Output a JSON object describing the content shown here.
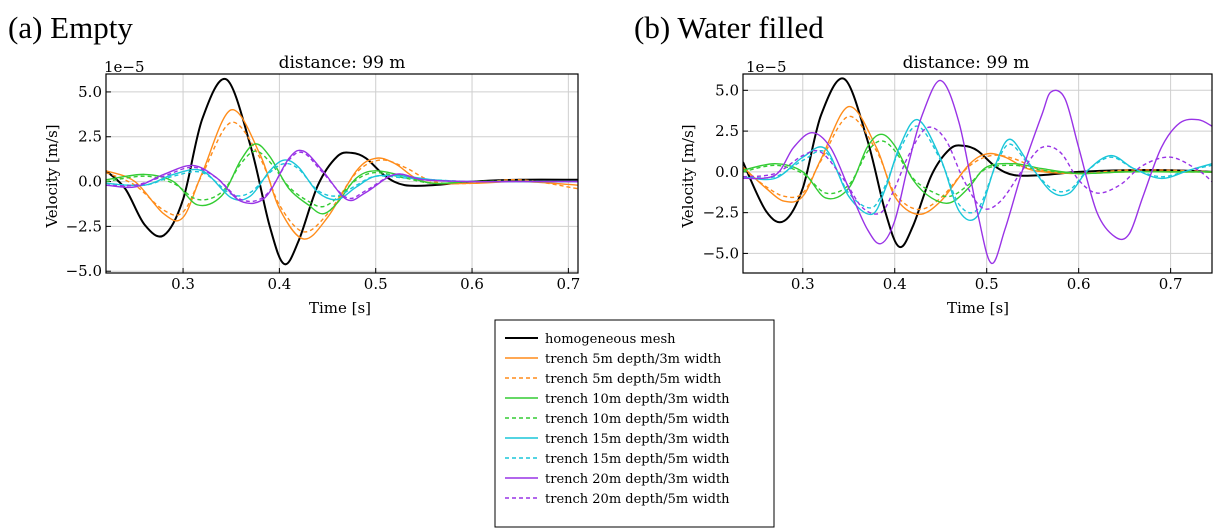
{
  "chart_data": [
    {
      "type": "line",
      "panel_label": "(a) Empty",
      "title": "distance: 99 m",
      "xlabel": "Time [s]",
      "ylabel": "Velocity [m/s]",
      "offset_text": "1e−5",
      "xlim": [
        0.22,
        0.71
      ],
      "ylim": [
        -5.1,
        6.0
      ],
      "xticks": [
        0.3,
        0.4,
        0.5,
        0.6,
        0.7
      ],
      "xtick_labels": [
        "0.3",
        "0.4",
        "0.5",
        "0.6",
        "0.7"
      ],
      "yticks": [
        -5.0,
        -2.5,
        0.0,
        2.5,
        5.0
      ],
      "ytick_labels": [
        "−5.0",
        "−2.5",
        "0.0",
        "2.5",
        "5.0"
      ],
      "grid": true,
      "series": [
        {
          "name": "homogeneous mesh",
          "color": "#000000",
          "dash": "solid",
          "x": [
            0.22,
            0.24,
            0.26,
            0.28,
            0.3,
            0.32,
            0.345,
            0.37,
            0.39,
            0.405,
            0.42,
            0.44,
            0.46,
            0.475,
            0.49,
            0.51,
            0.53,
            0.56,
            0.6,
            0.65,
            0.71
          ],
          "y": [
            0.6,
            -0.4,
            -2.4,
            -3.0,
            -1.0,
            3.5,
            5.7,
            2.0,
            -2.5,
            -4.6,
            -3.3,
            -0.2,
            1.4,
            1.6,
            1.3,
            0.3,
            -0.2,
            -0.2,
            0.0,
            0.1,
            0.1
          ]
        },
        {
          "name": "trench 5m depth/3m width",
          "color": "#ff8c1a",
          "dash": "solid",
          "x": [
            0.22,
            0.25,
            0.28,
            0.3,
            0.32,
            0.35,
            0.38,
            0.4,
            0.425,
            0.45,
            0.48,
            0.5,
            0.52,
            0.55,
            0.6,
            0.65,
            0.71
          ],
          "y": [
            0.6,
            0.0,
            -1.8,
            -2.0,
            0.5,
            4.0,
            1.5,
            -1.5,
            -3.2,
            -2.0,
            0.6,
            1.3,
            1.0,
            0.0,
            -0.1,
            0.0,
            -0.2
          ]
        },
        {
          "name": "trench 5m depth/5m width",
          "color": "#ff8c1a",
          "dash": "dashed",
          "x": [
            0.22,
            0.25,
            0.28,
            0.3,
            0.32,
            0.35,
            0.38,
            0.4,
            0.425,
            0.45,
            0.48,
            0.505,
            0.53,
            0.56,
            0.6,
            0.65,
            0.71
          ],
          "y": [
            0.5,
            -0.2,
            -1.6,
            -1.7,
            0.4,
            3.3,
            1.3,
            -1.3,
            -2.8,
            -1.8,
            0.5,
            1.2,
            0.8,
            0.0,
            -0.1,
            0.1,
            -0.4
          ]
        },
        {
          "name": "trench 10m depth/3m width",
          "color": "#33cc33",
          "dash": "solid",
          "x": [
            0.22,
            0.26,
            0.29,
            0.315,
            0.34,
            0.36,
            0.375,
            0.39,
            0.41,
            0.43,
            0.445,
            0.46,
            0.48,
            0.5,
            0.53,
            0.56,
            0.6,
            0.65,
            0.71
          ],
          "y": [
            0.1,
            0.4,
            0.0,
            -1.3,
            -0.8,
            1.2,
            2.1,
            1.4,
            -0.4,
            -1.3,
            -1.8,
            -1.2,
            0.2,
            0.6,
            0.3,
            -0.1,
            0.0,
            0.0,
            0.0
          ]
        },
        {
          "name": "trench 10m depth/5m width",
          "color": "#33cc33",
          "dash": "dashed",
          "x": [
            0.22,
            0.26,
            0.29,
            0.315,
            0.34,
            0.36,
            0.375,
            0.39,
            0.41,
            0.43,
            0.445,
            0.46,
            0.48,
            0.5,
            0.53,
            0.56,
            0.6,
            0.65,
            0.71
          ],
          "y": [
            0.0,
            0.3,
            -0.1,
            -1.0,
            -0.6,
            1.0,
            1.7,
            1.1,
            -0.3,
            -1.1,
            -1.4,
            -0.9,
            0.1,
            0.5,
            0.2,
            -0.1,
            0.0,
            0.0,
            0.0
          ]
        },
        {
          "name": "trench 15m depth/3m width",
          "color": "#1ac6d9",
          "dash": "solid",
          "x": [
            0.22,
            0.26,
            0.29,
            0.32,
            0.35,
            0.37,
            0.39,
            0.405,
            0.42,
            0.44,
            0.46,
            0.48,
            0.5,
            0.53,
            0.56,
            0.6,
            0.65,
            0.71
          ],
          "y": [
            -0.1,
            -0.2,
            0.4,
            0.6,
            -0.9,
            -0.8,
            0.6,
            1.2,
            0.8,
            -0.6,
            -1.0,
            -0.3,
            0.3,
            0.3,
            0.1,
            0.0,
            0.0,
            0.0
          ]
        },
        {
          "name": "trench 15m depth/5m width",
          "color": "#1ac6d9",
          "dash": "dashed",
          "x": [
            0.22,
            0.26,
            0.29,
            0.32,
            0.35,
            0.37,
            0.39,
            0.405,
            0.42,
            0.44,
            0.46,
            0.48,
            0.5,
            0.53,
            0.56,
            0.6,
            0.65,
            0.71
          ],
          "y": [
            -0.1,
            -0.2,
            0.3,
            0.5,
            -0.7,
            -0.6,
            0.5,
            1.0,
            0.7,
            -0.5,
            -0.8,
            -0.2,
            0.3,
            0.2,
            0.1,
            0.0,
            0.0,
            0.0
          ]
        },
        {
          "name": "trench 20m depth/3m width",
          "color": "#9933e6",
          "dash": "solid",
          "x": [
            0.22,
            0.25,
            0.28,
            0.31,
            0.335,
            0.36,
            0.385,
            0.41,
            0.425,
            0.445,
            0.47,
            0.49,
            0.52,
            0.55,
            0.6,
            0.65,
            0.71
          ],
          "y": [
            -0.2,
            -0.3,
            0.4,
            0.9,
            0.2,
            -1.1,
            -0.9,
            1.3,
            1.7,
            0.6,
            -1.0,
            -0.6,
            0.4,
            0.1,
            0.0,
            0.0,
            0.0
          ]
        },
        {
          "name": "trench 20m depth/5m width",
          "color": "#9933e6",
          "dash": "dashed",
          "x": [
            0.22,
            0.25,
            0.28,
            0.31,
            0.335,
            0.36,
            0.385,
            0.41,
            0.425,
            0.445,
            0.47,
            0.49,
            0.52,
            0.55,
            0.6,
            0.65,
            0.71
          ],
          "y": [
            -0.2,
            -0.2,
            0.3,
            0.8,
            0.2,
            -1.0,
            -0.8,
            1.2,
            1.6,
            0.5,
            -0.9,
            -0.5,
            0.4,
            0.1,
            0.0,
            0.0,
            0.0
          ]
        }
      ]
    },
    {
      "type": "line",
      "panel_label": "(b) Water filled",
      "title": "distance: 99 m",
      "xlabel": "Time [s]",
      "ylabel": "Velocity [m/s]",
      "offset_text": "1e−5",
      "xlim": [
        0.235,
        0.745
      ],
      "ylim": [
        -6.2,
        6.0
      ],
      "xticks": [
        0.3,
        0.4,
        0.5,
        0.6,
        0.7
      ],
      "xtick_labels": [
        "0.3",
        "0.4",
        "0.5",
        "0.6",
        "0.7"
      ],
      "yticks": [
        -5.0,
        -2.5,
        0.0,
        2.5,
        5.0
      ],
      "ytick_labels": [
        "−5.0",
        "−2.5",
        "0.0",
        "2.5",
        "5.0"
      ],
      "grid": true,
      "series": [
        {
          "name": "homogeneous mesh",
          "color": "#000000",
          "dash": "solid",
          "x": [
            0.235,
            0.26,
            0.28,
            0.3,
            0.32,
            0.345,
            0.37,
            0.39,
            0.405,
            0.42,
            0.44,
            0.46,
            0.475,
            0.49,
            0.51,
            0.53,
            0.56,
            0.6,
            0.65,
            0.7,
            0.745
          ],
          "y": [
            0.6,
            -2.4,
            -3.0,
            -1.0,
            3.5,
            5.7,
            2.0,
            -2.5,
            -4.6,
            -3.3,
            -0.2,
            1.4,
            1.6,
            1.3,
            0.3,
            -0.2,
            -0.2,
            0.0,
            0.1,
            0.1,
            0.0
          ]
        },
        {
          "name": "trench 5m depth/3m width",
          "color": "#ff8c1a",
          "dash": "solid",
          "x": [
            0.235,
            0.26,
            0.28,
            0.3,
            0.32,
            0.35,
            0.38,
            0.4,
            0.425,
            0.45,
            0.48,
            0.5,
            0.52,
            0.55,
            0.6,
            0.65,
            0.7,
            0.745
          ],
          "y": [
            0.3,
            -1.0,
            -1.8,
            -1.5,
            0.8,
            4.0,
            1.5,
            -1.5,
            -2.6,
            -1.8,
            0.4,
            1.1,
            0.9,
            0.1,
            -0.1,
            0.0,
            0.0,
            0.0
          ]
        },
        {
          "name": "trench 5m depth/5m width",
          "color": "#ff8c1a",
          "dash": "dashed",
          "x": [
            0.235,
            0.26,
            0.28,
            0.3,
            0.32,
            0.35,
            0.38,
            0.4,
            0.425,
            0.45,
            0.48,
            0.505,
            0.53,
            0.56,
            0.6,
            0.65,
            0.7,
            0.745
          ],
          "y": [
            0.2,
            -0.9,
            -1.5,
            -1.3,
            0.7,
            3.4,
            1.3,
            -1.3,
            -2.3,
            -1.6,
            0.3,
            1.0,
            0.8,
            0.1,
            -0.1,
            0.1,
            0.1,
            0.0
          ]
        },
        {
          "name": "trench 10m depth/3m width",
          "color": "#33cc33",
          "dash": "solid",
          "x": [
            0.235,
            0.27,
            0.3,
            0.325,
            0.35,
            0.37,
            0.385,
            0.4,
            0.42,
            0.44,
            0.46,
            0.48,
            0.5,
            0.53,
            0.56,
            0.6,
            0.65,
            0.7,
            0.745
          ],
          "y": [
            0.1,
            0.5,
            0.0,
            -1.6,
            -1.0,
            1.5,
            2.3,
            1.6,
            -0.5,
            -1.6,
            -1.9,
            -1.0,
            0.3,
            0.5,
            0.2,
            -0.1,
            0.0,
            0.0,
            0.0
          ]
        },
        {
          "name": "trench 10m depth/5m width",
          "color": "#33cc33",
          "dash": "dashed",
          "x": [
            0.235,
            0.27,
            0.3,
            0.325,
            0.35,
            0.37,
            0.385,
            0.4,
            0.42,
            0.44,
            0.46,
            0.48,
            0.5,
            0.53,
            0.56,
            0.6,
            0.65,
            0.7,
            0.745
          ],
          "y": [
            0.0,
            0.4,
            -0.1,
            -1.3,
            -0.8,
            1.2,
            1.9,
            1.3,
            -0.4,
            -1.2,
            -1.5,
            -0.8,
            0.2,
            0.4,
            0.1,
            -0.1,
            0.0,
            0.0,
            0.0
          ]
        },
        {
          "name": "trench 15m depth/3m width",
          "color": "#1ac6d9",
          "dash": "solid",
          "x": [
            0.235,
            0.27,
            0.3,
            0.325,
            0.35,
            0.375,
            0.39,
            0.405,
            0.425,
            0.45,
            0.47,
            0.49,
            0.51,
            0.525,
            0.545,
            0.57,
            0.59,
            0.61,
            0.635,
            0.66,
            0.69,
            0.72,
            0.745
          ],
          "y": [
            -0.3,
            -0.4,
            0.9,
            1.4,
            -1.5,
            -2.6,
            -1.0,
            1.5,
            3.2,
            0.8,
            -2.4,
            -2.7,
            0.5,
            2.0,
            0.6,
            -1.2,
            -1.3,
            0.1,
            1.0,
            0.2,
            -0.4,
            0.1,
            0.5
          ]
        },
        {
          "name": "trench 15m depth/5m width",
          "color": "#1ac6d9",
          "dash": "dashed",
          "x": [
            0.235,
            0.27,
            0.3,
            0.325,
            0.35,
            0.375,
            0.39,
            0.405,
            0.425,
            0.45,
            0.47,
            0.49,
            0.51,
            0.525,
            0.545,
            0.57,
            0.59,
            0.61,
            0.635,
            0.66,
            0.69,
            0.72,
            0.745
          ],
          "y": [
            -0.3,
            -0.3,
            0.7,
            1.2,
            -1.3,
            -2.2,
            -0.8,
            1.3,
            2.8,
            0.7,
            -2.0,
            -2.3,
            0.4,
            1.7,
            0.5,
            -1.0,
            -1.1,
            0.1,
            0.9,
            0.2,
            -0.3,
            0.1,
            0.4
          ]
        },
        {
          "name": "trench 20m depth/3m width",
          "color": "#9933e6",
          "dash": "solid",
          "x": [
            0.235,
            0.27,
            0.29,
            0.31,
            0.33,
            0.35,
            0.37,
            0.385,
            0.4,
            0.415,
            0.43,
            0.45,
            0.47,
            0.49,
            0.505,
            0.52,
            0.54,
            0.56,
            0.57,
            0.585,
            0.6,
            0.62,
            0.64,
            0.655,
            0.67,
            0.69,
            0.71,
            0.73,
            0.745
          ],
          "y": [
            -0.4,
            -0.2,
            1.5,
            2.4,
            1.5,
            -1.0,
            -3.5,
            -4.4,
            -3.0,
            0.5,
            3.5,
            5.6,
            3.0,
            -2.5,
            -5.6,
            -3.5,
            0.3,
            3.5,
            4.9,
            4.5,
            1.5,
            -2.5,
            -4.0,
            -3.8,
            -1.5,
            1.5,
            3.0,
            3.2,
            2.8
          ]
        },
        {
          "name": "trench 20m depth/5m width",
          "color": "#9933e6",
          "dash": "dashed",
          "x": [
            0.235,
            0.27,
            0.3,
            0.32,
            0.345,
            0.365,
            0.385,
            0.4,
            0.415,
            0.435,
            0.455,
            0.475,
            0.495,
            0.515,
            0.54,
            0.56,
            0.58,
            0.6,
            0.62,
            0.645,
            0.67,
            0.7,
            0.73,
            0.745
          ],
          "y": [
            -0.3,
            -0.1,
            1.0,
            1.2,
            -0.5,
            -2.2,
            -2.5,
            -1.0,
            1.0,
            2.7,
            2.0,
            -0.5,
            -2.2,
            -1.8,
            0.2,
            1.5,
            1.2,
            -0.5,
            -1.3,
            -0.8,
            0.4,
            0.9,
            0.1,
            -0.6
          ]
        }
      ]
    }
  ],
  "legend": {
    "entries": [
      {
        "label": "homogeneous mesh",
        "color": "#000000",
        "dash": "solid"
      },
      {
        "label": "trench 5m depth/3m width",
        "color": "#ff8c1a",
        "dash": "solid"
      },
      {
        "label": "trench 5m depth/5m width",
        "color": "#ff8c1a",
        "dash": "dashed"
      },
      {
        "label": "trench 10m depth/3m width",
        "color": "#33cc33",
        "dash": "solid"
      },
      {
        "label": "trench 10m depth/5m width",
        "color": "#33cc33",
        "dash": "dashed"
      },
      {
        "label": "trench 15m depth/3m width",
        "color": "#1ac6d9",
        "dash": "solid"
      },
      {
        "label": "trench 15m depth/5m width",
        "color": "#1ac6d9",
        "dash": "dashed"
      },
      {
        "label": "trench 20m depth/3m width",
        "color": "#9933e6",
        "dash": "solid"
      },
      {
        "label": "trench 20m depth/5m width",
        "color": "#9933e6",
        "dash": "dashed"
      }
    ]
  }
}
